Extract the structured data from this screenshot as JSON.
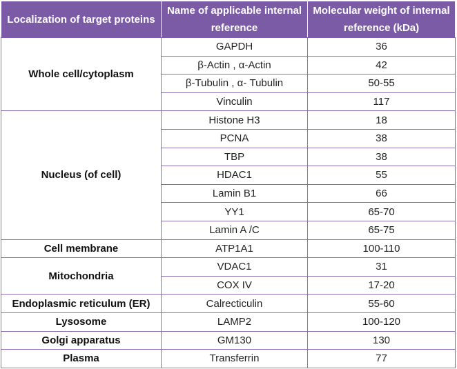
{
  "headers": [
    "Localization of target proteins",
    "Name of applicable internal reference",
    "Molecular weight of internal reference (kDa)"
  ],
  "groups": [
    {
      "location": "Whole cell/cytoplasm",
      "rows": [
        {
          "name": "GAPDH",
          "mw": "36"
        },
        {
          "name": "β-Actin , α-Actin",
          "mw": "42"
        },
        {
          "name": "β-Tubulin , α- Tubulin",
          "mw": "50-55"
        },
        {
          "name": "Vinculin",
          "mw": "117"
        }
      ]
    },
    {
      "location": "Nucleus (of cell)",
      "rows": [
        {
          "name": "Histone H3",
          "mw": "18"
        },
        {
          "name": "PCNA",
          "mw": "38"
        },
        {
          "name": "TBP",
          "mw": "38"
        },
        {
          "name": "HDAC1",
          "mw": "55"
        },
        {
          "name": "Lamin B1",
          "mw": "66"
        },
        {
          "name": "YY1",
          "mw": "65-70"
        },
        {
          "name": "Lamin A /C",
          "mw": "65-75"
        }
      ]
    },
    {
      "location": "Cell membrane",
      "rows": [
        {
          "name": "ATP1A1",
          "mw": "100-110"
        }
      ]
    },
    {
      "location": "Mitochondria",
      "rows": [
        {
          "name": "VDAC1",
          "mw": "31"
        },
        {
          "name": "COX IV",
          "mw": "17-20"
        }
      ]
    },
    {
      "location": "Endoplasmic reticulum (ER)",
      "rows": [
        {
          "name": "Calrecticulin",
          "mw": "55-60"
        }
      ]
    },
    {
      "location": "Lysosome",
      "rows": [
        {
          "name": "LAMP2",
          "mw": "100-120"
        }
      ]
    },
    {
      "location": "Golgi apparatus",
      "rows": [
        {
          "name": "GM130",
          "mw": "130"
        }
      ]
    },
    {
      "location": "Plasma",
      "rows": [
        {
          "name": "Transferrin",
          "mw": "77"
        }
      ]
    }
  ],
  "colors": {
    "header_bg": "#7b5ba6",
    "header_text": "#ffffff",
    "border": "#8a6fb3"
  }
}
